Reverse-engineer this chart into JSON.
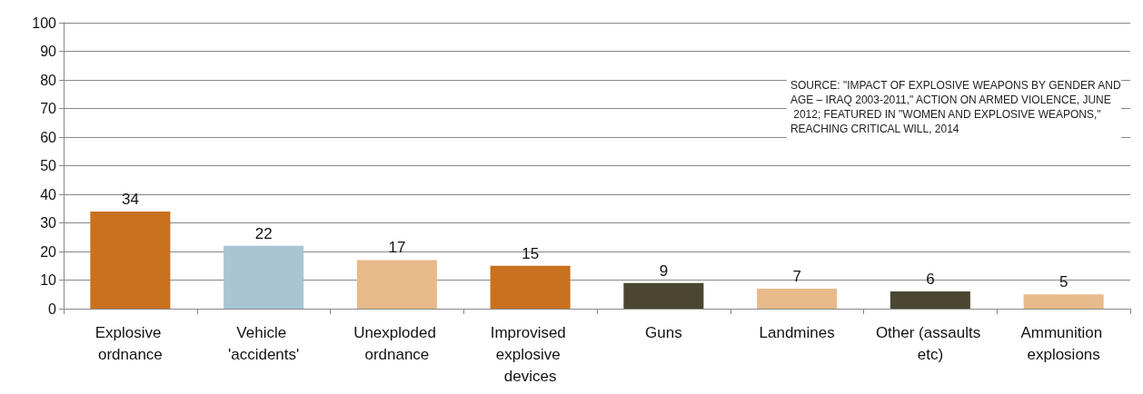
{
  "chart_data": {
    "type": "bar",
    "categories": [
      "Explosive ordnance",
      "Vehicle 'accidents'",
      "Unexploded ordnance",
      "Improvised explosive devices",
      "Guns",
      "Landmines",
      "Other (assaults etc)",
      "Ammunition explosions"
    ],
    "values": [
      34,
      22,
      17,
      15,
      9,
      7,
      6,
      5
    ],
    "colors": [
      "#c8711e",
      "#a9c5d3",
      "#e8b98a",
      "#c8711e",
      "#4a4631",
      "#e8b98a",
      "#4a4631",
      "#e8b98a"
    ],
    "ylim": [
      0,
      100
    ],
    "yticks": [
      0,
      10,
      20,
      30,
      40,
      50,
      60,
      70,
      80,
      90,
      100
    ],
    "grid": "y",
    "data_labels": true,
    "annotations": [
      "SOURCE: \"IMPACT OF EXPLOSIVE WEAPONS BY GENDER AND AGE – IRAQ 2003-2011,\" ACTION ON ARMED VIOLENCE, JUNE 2012; FEATURED IN \"WOMEN AND EXPLOSIVE WEAPONS,\" REACHING CRITICAL WILL, 2014"
    ]
  }
}
